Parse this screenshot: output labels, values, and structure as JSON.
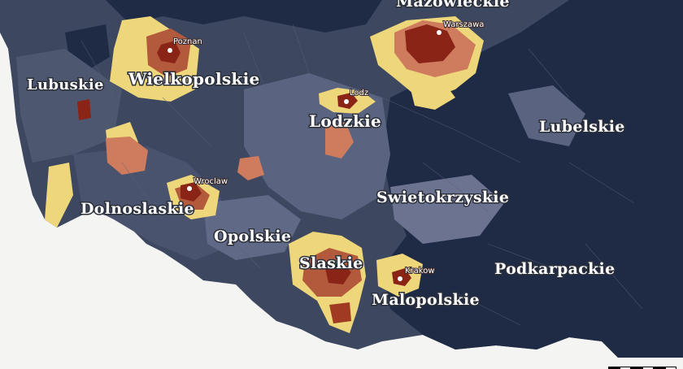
{
  "colors": {
    "background": "#f4f4f2",
    "very_low": "#1f2a44",
    "low": "#3d4760",
    "medium_low": "#5a6480",
    "medium": "#7d8499",
    "high": "#eed67a",
    "higher": "#cf7b5e",
    "very_high": "#b35a3c",
    "highest": "#8a2416"
  },
  "regions": [
    {
      "name": "Mazowieckie"
    },
    {
      "name": "Wielkopolskie"
    },
    {
      "name": "Lubuskie"
    },
    {
      "name": "Lodzkie"
    },
    {
      "name": "Lubelskie"
    },
    {
      "name": "Swietokrzyskie"
    },
    {
      "name": "Dolnoslaskie"
    },
    {
      "name": "Opolskie"
    },
    {
      "name": "Slaskie"
    },
    {
      "name": "Malopolskie"
    },
    {
      "name": "Podkarpackie"
    }
  ],
  "cities": [
    {
      "name": "Poznan"
    },
    {
      "name": "Warszawa"
    },
    {
      "name": "Lodz"
    },
    {
      "name": "Wroclaw"
    },
    {
      "name": "Krakow"
    }
  ]
}
